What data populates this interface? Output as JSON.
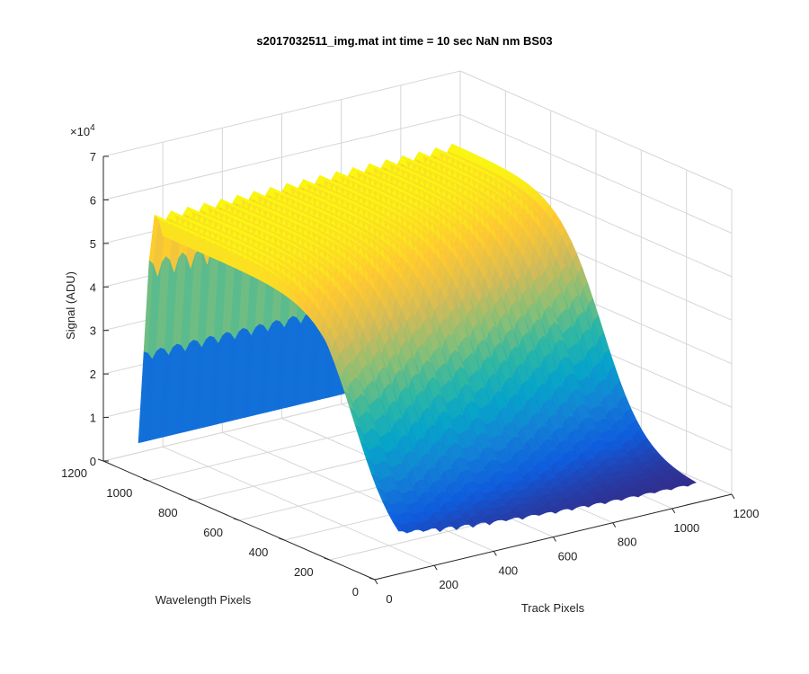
{
  "chart_data": {
    "type": "surface",
    "title": "s2017032511_img.mat int time = 10 sec  NaN nm BS03",
    "xlabel": "Track Pixels",
    "ylabel": "Wavelength Pixels",
    "zlabel": "Signal (ADU)",
    "z_exponent_label": "×10",
    "z_exponent_power": "4",
    "x_ticks": [
      0,
      200,
      400,
      600,
      800,
      1000,
      1200
    ],
    "y_ticks": [
      0,
      200,
      400,
      600,
      800,
      1000,
      1200
    ],
    "z_ticks": [
      0,
      1,
      2,
      3,
      4,
      5,
      6,
      7
    ],
    "xlim": [
      0,
      1200
    ],
    "ylim": [
      0,
      1200
    ],
    "zlim": [
      0,
      70000
    ],
    "grid": true,
    "colormap": "parula",
    "colors": [
      "#352a87",
      "#0f5cdd",
      "#1481d6",
      "#06a4ca",
      "#2eb7a4",
      "#87bf77",
      "#d1bb59",
      "#fec832",
      "#f9fb0e"
    ],
    "track_count": 19,
    "track_range": [
      80,
      1080
    ],
    "wavelength_range": [
      0,
      1150
    ],
    "signal_start": 4000,
    "signal_plateau": 58000,
    "rise_center_wavelength": 200,
    "rise_center_step_per_track": 12
  }
}
